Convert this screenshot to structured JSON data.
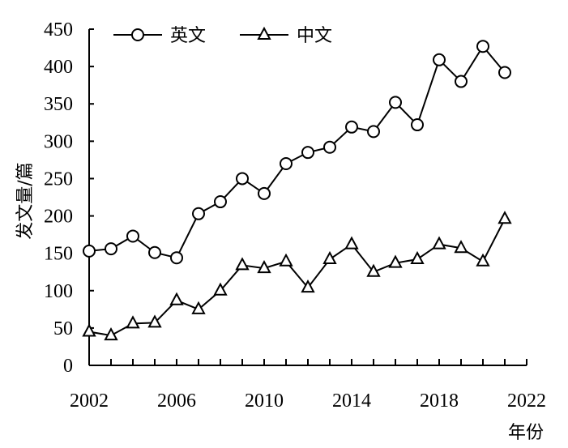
{
  "chart_data": {
    "type": "line",
    "xlabel": "年份",
    "ylabel": "发文量/篇",
    "xlim": [
      2002,
      2022
    ],
    "ylim": [
      0,
      450
    ],
    "xticks": [
      "2002",
      "2006",
      "2010",
      "2014",
      "2018",
      "2022"
    ],
    "yticks": [
      "0",
      "50",
      "100",
      "150",
      "200",
      "250",
      "300",
      "350",
      "400",
      "450"
    ],
    "x": [
      2002,
      2003,
      2004,
      2005,
      2006,
      2007,
      2008,
      2009,
      2010,
      2011,
      2012,
      2013,
      2014,
      2015,
      2016,
      2017,
      2018,
      2019,
      2020,
      2021
    ],
    "series": [
      {
        "name": "英文",
        "marker": "circle",
        "values": [
          153,
          156,
          173,
          151,
          144,
          203,
          219,
          250,
          230,
          270,
          285,
          292,
          319,
          313,
          352,
          322,
          409,
          380,
          427,
          392
        ]
      },
      {
        "name": "中文",
        "marker": "triangle",
        "values": [
          45,
          40,
          56,
          57,
          87,
          75,
          100,
          134,
          130,
          139,
          104,
          142,
          162,
          125,
          137,
          142,
          162,
          157,
          139,
          196
        ]
      }
    ],
    "grid": false,
    "legend_position": "top"
  }
}
